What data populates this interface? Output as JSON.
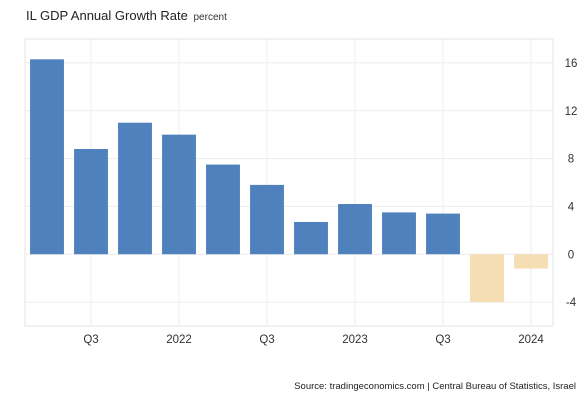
{
  "chart_data": {
    "type": "bar",
    "title": "IL GDP Annual Growth Rate",
    "unit": "percent",
    "categories": [
      "2021 Q2",
      "2021 Q3",
      "2021 Q4",
      "2022 Q1",
      "2022 Q2",
      "2022 Q3",
      "2022 Q4",
      "2023 Q1",
      "2023 Q2",
      "2023 Q3",
      "2023 Q4",
      "2024 Q1"
    ],
    "values": [
      16.3,
      8.8,
      11.0,
      10.0,
      7.5,
      5.8,
      2.7,
      4.2,
      3.5,
      3.4,
      -4.0,
      -1.2
    ],
    "x_tick_labels": [
      {
        "category": "2021 Q3",
        "label": "Q3"
      },
      {
        "category": "2022 Q1",
        "label": "2022"
      },
      {
        "category": "2022 Q3",
        "label": "Q3"
      },
      {
        "category": "2023 Q1",
        "label": "2023"
      },
      {
        "category": "2023 Q3",
        "label": "Q3"
      },
      {
        "category": "2024 Q1",
        "label": "2024"
      }
    ],
    "y_ticks": [
      -4,
      0,
      4,
      8,
      12,
      16
    ],
    "ylim": [
      -6,
      18
    ],
    "y_axis_side": "right",
    "grid": true,
    "colors": {
      "positive": "#4f81bd",
      "negative": "#f5deb3",
      "grid": "#ececec",
      "axis_text": "#333333"
    },
    "source": "Source: tradingeconomics.com | Central Bureau of Statistics, Israel"
  }
}
